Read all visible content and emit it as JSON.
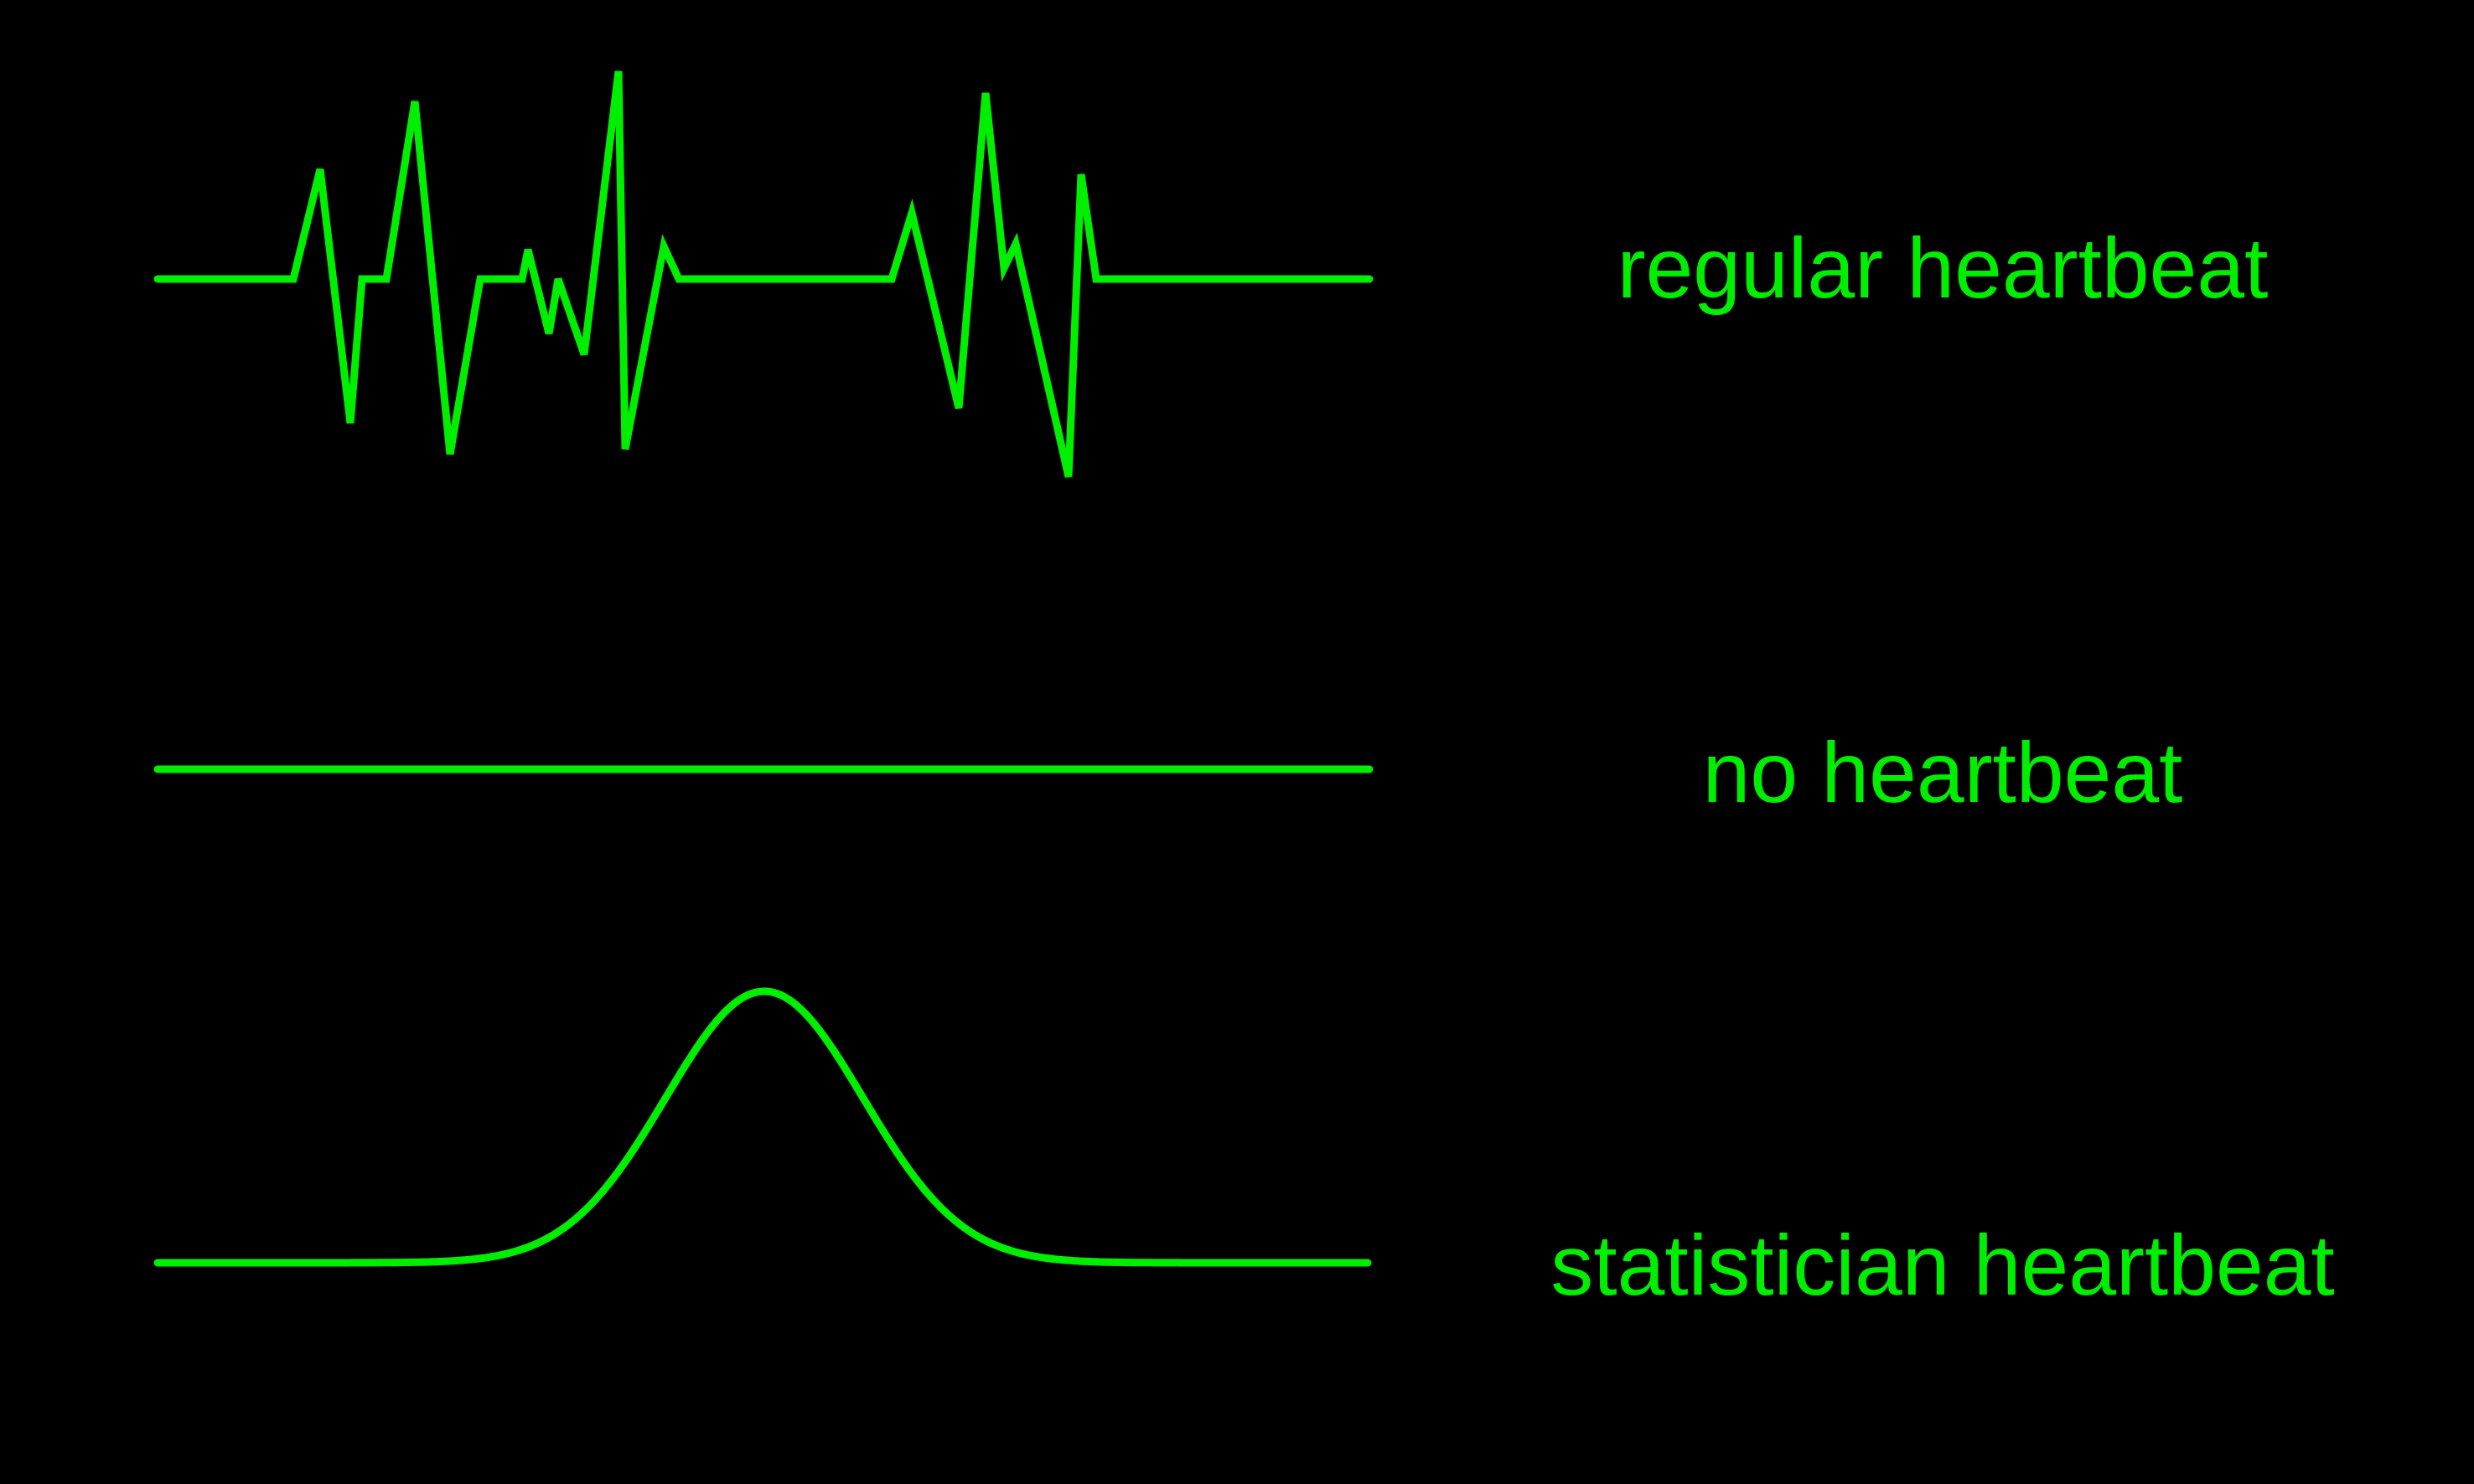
{
  "colors": {
    "background": "#000000",
    "trace": "#00ee00"
  },
  "labels": {
    "regular": "regular heartbeat",
    "none": "no heartbeat",
    "statistician": "statistician heartbeat"
  }
}
